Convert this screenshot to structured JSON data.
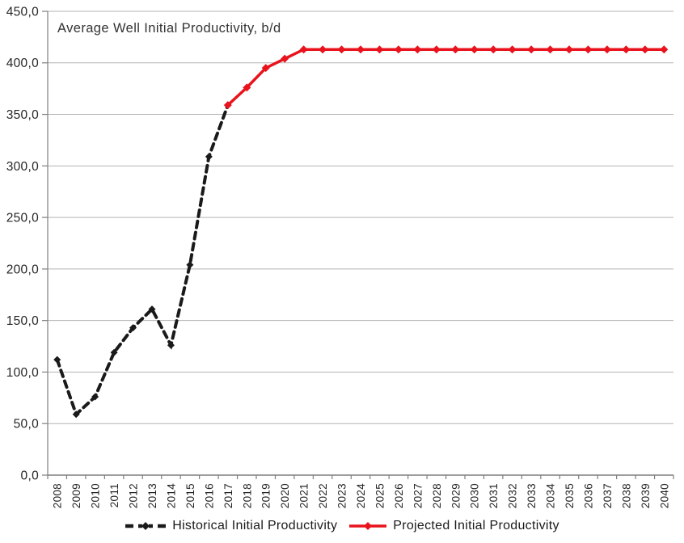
{
  "title": "Average Well Initial Productivity, b/d",
  "colors": {
    "historical": "#1a1a1a",
    "projected": "#e8131d",
    "gridline": "#b3b3b3",
    "axis": "#7f7f7f",
    "text": "#262626",
    "background": "#ffffff"
  },
  "legend": [
    {
      "label": "Historical Initial Productivity",
      "color": "#1a1a1a",
      "style": "dashed",
      "marker": "diamond"
    },
    {
      "label": "Projected Initial Productivity",
      "color": "#e8131d",
      "style": "solid",
      "marker": "diamond"
    }
  ],
  "chart_data": {
    "type": "line",
    "title": "Average Well Initial Productivity, b/d",
    "x": [
      2008,
      2009,
      2010,
      2011,
      2012,
      2013,
      2014,
      2015,
      2016,
      2017,
      2018,
      2019,
      2020,
      2021,
      2022,
      2023,
      2024,
      2025,
      2026,
      2027,
      2028,
      2029,
      2030,
      2031,
      2032,
      2033,
      2034,
      2035,
      2036,
      2037,
      2038,
      2039,
      2040
    ],
    "series": [
      {
        "name": "Historical Initial Productivity",
        "color": "#1a1a1a",
        "dash": true,
        "marker": "diamond",
        "x": [
          2008,
          2009,
          2010,
          2011,
          2012,
          2013,
          2014,
          2015,
          2016,
          2017
        ],
        "values": [
          112,
          59,
          76,
          119,
          143,
          161,
          126,
          204,
          309,
          359
        ]
      },
      {
        "name": "Projected Initial Productivity",
        "color": "#e8131d",
        "dash": false,
        "marker": "diamond",
        "x": [
          2017,
          2018,
          2019,
          2020,
          2021,
          2022,
          2023,
          2024,
          2025,
          2026,
          2027,
          2028,
          2029,
          2030,
          2031,
          2032,
          2033,
          2034,
          2035,
          2036,
          2037,
          2038,
          2039,
          2040
        ],
        "values": [
          359,
          376,
          395,
          404,
          413,
          413,
          413,
          413,
          413,
          413,
          413,
          413,
          413,
          413,
          413,
          413,
          413,
          413,
          413,
          413,
          413,
          413,
          413,
          413
        ]
      }
    ],
    "ylim": [
      0,
      450
    ],
    "ytick_step": 50,
    "ytick_labels": [
      "0,0",
      "50,0",
      "100,0",
      "150,0",
      "200,0",
      "250,0",
      "300,0",
      "350,0",
      "400,0",
      "450,0"
    ],
    "xlabel": "",
    "ylabel": "",
    "grid": true,
    "legend_position": "bottom"
  }
}
